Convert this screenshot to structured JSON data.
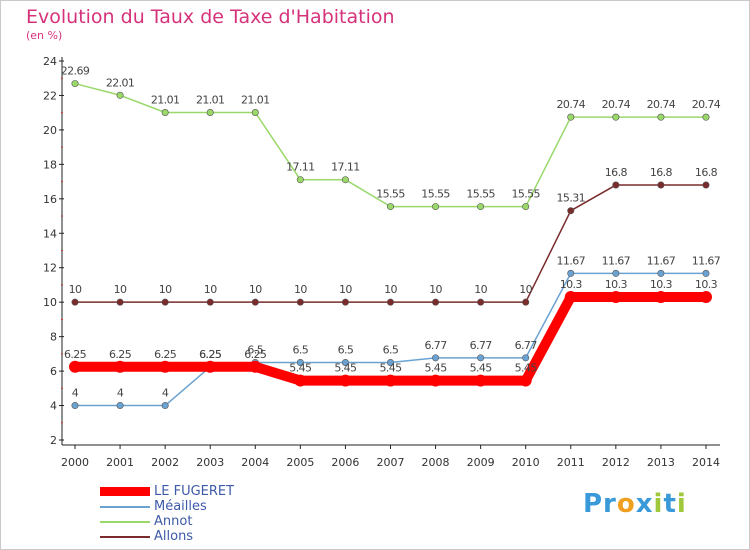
{
  "chart_data": {
    "type": "line",
    "title": "Evolution du Taux de Taxe d'Habitation",
    "subtitle": "(en %)",
    "categories": [
      "2000",
      "2001",
      "2002",
      "2003",
      "2004",
      "2005",
      "2006",
      "2007",
      "2008",
      "2009",
      "2010",
      "2011",
      "2012",
      "2013",
      "2014"
    ],
    "ylim": [
      2,
      24
    ],
    "yticks": [
      2,
      4,
      6,
      8,
      10,
      12,
      14,
      16,
      18,
      20,
      22,
      24
    ],
    "grid": false,
    "legend_position": "bottom-left",
    "series": [
      {
        "name": "LE FUGERET",
        "color": "#ff0000",
        "values": [
          6.25,
          6.25,
          6.25,
          6.25,
          6.25,
          5.45,
          5.45,
          5.45,
          5.45,
          5.45,
          5.45,
          10.3,
          10.3,
          10.3,
          10.3
        ],
        "labels": [
          "6.25",
          "6.25",
          "6.25",
          "6.25",
          "6.25",
          "5.45",
          "5.45",
          "5.45",
          "5.45",
          "5.45",
          "5.45",
          "10.3",
          "10.3",
          "10.3",
          "10.3"
        ]
      },
      {
        "name": "Méailles",
        "color": "#6aa2d2",
        "values": [
          4,
          4,
          4,
          6.25,
          6.5,
          6.5,
          6.5,
          6.5,
          6.77,
          6.77,
          6.77,
          11.67,
          11.67,
          11.67,
          11.67
        ],
        "labels": [
          "4",
          "4",
          "4",
          "6.25",
          "6.5",
          "6.5",
          "6.5",
          "6.5",
          "6.77",
          "6.77",
          "6.77",
          "11.67",
          "11.67",
          "11.67",
          "11.67"
        ]
      },
      {
        "name": "Annot",
        "color": "#9ad86a",
        "values": [
          22.69,
          22.01,
          21.01,
          21.01,
          21.01,
          17.11,
          17.11,
          15.55,
          15.55,
          15.55,
          15.55,
          20.74,
          20.74,
          20.74,
          20.74
        ],
        "labels": [
          "22.69",
          "22.01",
          "21.01",
          "21.01",
          "21.01",
          "17.11",
          "17.11",
          "15.55",
          "15.55",
          "15.55",
          "15.55",
          "20.74",
          "20.74",
          "20.74",
          "20.74"
        ]
      },
      {
        "name": "Allons",
        "color": "#7a2b2b",
        "values": [
          10,
          10,
          10,
          10,
          10,
          10,
          10,
          10,
          10,
          10,
          10,
          15.31,
          16.8,
          16.8,
          16.8
        ],
        "labels": [
          "10",
          "10",
          "10",
          "10",
          "10",
          "10",
          "10",
          "10",
          "10",
          "10",
          "10",
          "15.31",
          "16.8",
          "16.8",
          "16.8"
        ]
      }
    ]
  },
  "logo": {
    "text_parts": [
      "Pr",
      "o",
      "x",
      "i",
      "t",
      "i"
    ],
    "colors": [
      "#3a9ad9",
      "#f0a020",
      "#3a9ad9",
      "#a0c83c",
      "#3a9ad9",
      "#a0c83c"
    ]
  }
}
